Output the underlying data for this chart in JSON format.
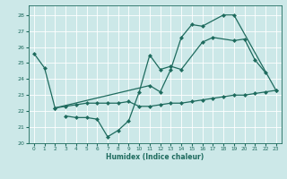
{
  "xlabel": "Humidex (Indice chaleur)",
  "background_color": "#cce8e8",
  "grid_color": "#ffffff",
  "line_color": "#1e6b5e",
  "xlim": [
    -0.5,
    23.5
  ],
  "ylim": [
    20.0,
    28.6
  ],
  "yticks": [
    20,
    21,
    22,
    23,
    24,
    25,
    26,
    27,
    28
  ],
  "xticks": [
    0,
    1,
    2,
    3,
    4,
    5,
    6,
    7,
    8,
    9,
    10,
    11,
    12,
    13,
    14,
    15,
    16,
    17,
    18,
    19,
    20,
    21,
    22,
    23
  ],
  "s1_x": [
    0,
    1,
    2,
    11,
    12,
    13,
    14,
    15,
    16,
    18,
    19,
    23
  ],
  "s1_y": [
    25.6,
    24.7,
    22.2,
    23.6,
    23.2,
    24.6,
    26.6,
    27.4,
    27.3,
    28.0,
    28.0,
    23.3
  ],
  "s2_x": [
    3,
    4,
    5,
    6,
    7,
    8,
    9,
    10,
    11,
    12,
    13,
    14,
    16,
    17,
    19,
    20,
    21,
    22
  ],
  "s2_y": [
    21.7,
    21.6,
    21.6,
    21.5,
    20.4,
    20.8,
    21.4,
    23.2,
    25.5,
    24.6,
    24.8,
    24.6,
    26.3,
    26.6,
    26.4,
    26.5,
    25.2,
    24.4
  ],
  "s3_x": [
    2,
    3,
    4,
    5,
    6,
    7,
    8,
    9,
    10,
    11,
    12,
    13,
    14,
    15,
    16,
    17,
    18,
    19,
    20,
    21,
    22,
    23
  ],
  "s3_y": [
    22.2,
    22.3,
    22.4,
    22.5,
    22.5,
    22.5,
    22.5,
    22.6,
    22.3,
    22.3,
    22.4,
    22.5,
    22.5,
    22.6,
    22.7,
    22.8,
    22.9,
    23.0,
    23.0,
    23.1,
    23.2,
    23.3
  ]
}
